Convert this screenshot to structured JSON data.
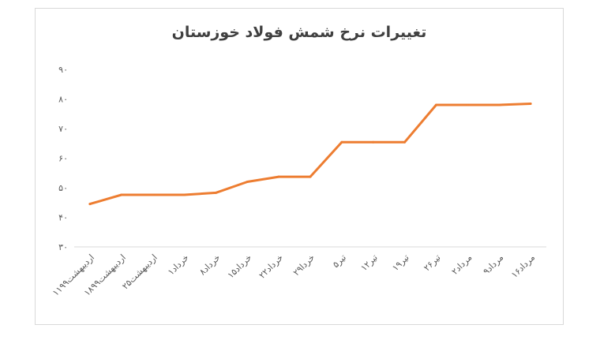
{
  "chart_data": {
    "type": "line",
    "title": "تغییرات نرخ شمش فولاد خوزستان",
    "xlabel": "",
    "ylabel": "",
    "categories": [
      "۱۱اردیبهشت۹۹",
      "۱۸اردیبهشت۹۹",
      "۲۵اردیبهشت",
      "۱خرداد",
      "۸خرداد",
      "۱۵خرداد",
      "۲۲خرداد",
      "۲۹خردا",
      "۵تیر",
      "۱۲تیر",
      "۱۹تیر",
      "۲۶تیر",
      "۲مرداد",
      "۹مرداد",
      "۱۶مرداد"
    ],
    "values": [
      44.5,
      47.6,
      47.6,
      47.6,
      48.3,
      52,
      53.7,
      53.7,
      65.4,
      65.4,
      65.4,
      78,
      78,
      78,
      78.4
    ],
    "ylim": [
      30,
      90
    ],
    "yticks": [
      30,
      40,
      50,
      60,
      70,
      80,
      90
    ],
    "ytick_labels": [
      "۳۰",
      "۴۰",
      "۵۰",
      "۶۰",
      "۷۰",
      "۸۰",
      "۹۰"
    ],
    "grid": false,
    "line_color": "#ED7D31",
    "axis_color": "#d9d9d9"
  }
}
